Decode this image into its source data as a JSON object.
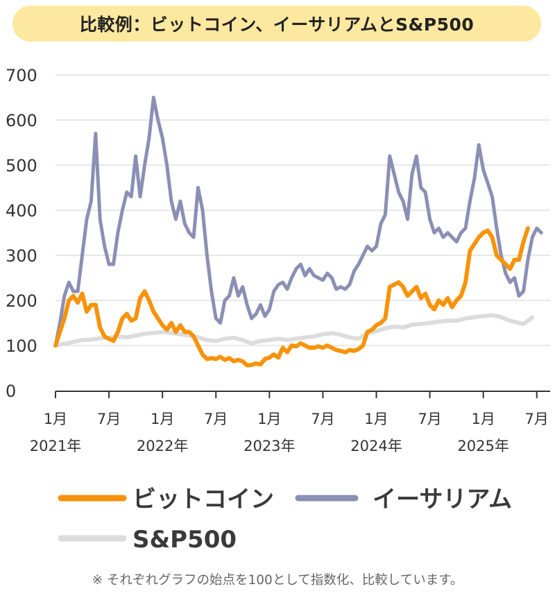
{
  "title": "比較例：ビットコイン、イーサリアムとS&P500",
  "footnote": "※ それぞれグラフの始点を100として指数化、比較しています。",
  "colors": {
    "title_bg": "#fde8a0",
    "bitcoin": "#f7930a",
    "ethereum": "#8b8fb5",
    "sp500": "#dcdcdc",
    "grid": "#d0d0d0",
    "axis": "#333333"
  },
  "chart_data": {
    "type": "line",
    "title": "比較例：ビットコイン、イーサリアムとS&P500",
    "xlabel": "",
    "ylabel": "",
    "ylim": [
      0,
      700
    ],
    "yticks": [
      0,
      100,
      200,
      300,
      400,
      500,
      600,
      700
    ],
    "x_ticks": [
      {
        "t": 0,
        "month": "1月",
        "year": "2021年"
      },
      {
        "t": 6,
        "month": "7月",
        "year": ""
      },
      {
        "t": 12,
        "month": "1月",
        "year": "2022年"
      },
      {
        "t": 18,
        "month": "7月",
        "year": ""
      },
      {
        "t": 24,
        "month": "1月",
        "year": "2023年"
      },
      {
        "t": 30,
        "month": "7月",
        "year": ""
      },
      {
        "t": 36,
        "month": "1月",
        "year": "2024年"
      },
      {
        "t": 42,
        "month": "7月",
        "year": ""
      },
      {
        "t": 48,
        "month": "1月",
        "year": "2025年"
      },
      {
        "t": 54,
        "month": "7月",
        "year": ""
      }
    ],
    "x_range_months": [
      0,
      55.5
    ],
    "grid": true,
    "legend_position": "bottom",
    "legend": [
      "ビットコイン",
      "イーサリアム",
      "S&P500"
    ],
    "series": [
      {
        "name": "ビットコイン",
        "color": "#f7930a",
        "points": [
          [
            0,
            100
          ],
          [
            0.5,
            130
          ],
          [
            1,
            160
          ],
          [
            1.5,
            200
          ],
          [
            2,
            210
          ],
          [
            2.5,
            195
          ],
          [
            3,
            215
          ],
          [
            3.5,
            175
          ],
          [
            4,
            190
          ],
          [
            4.5,
            190
          ],
          [
            5,
            140
          ],
          [
            5.5,
            120
          ],
          [
            6,
            115
          ],
          [
            6.5,
            110
          ],
          [
            7,
            130
          ],
          [
            7.5,
            160
          ],
          [
            8,
            170
          ],
          [
            8.5,
            155
          ],
          [
            9,
            160
          ],
          [
            9.5,
            205
          ],
          [
            10,
            220
          ],
          [
            10.5,
            200
          ],
          [
            11,
            175
          ],
          [
            11.5,
            160
          ],
          [
            12,
            145
          ],
          [
            12.5,
            135
          ],
          [
            13,
            150
          ],
          [
            13.5,
            130
          ],
          [
            14,
            145
          ],
          [
            14.5,
            130
          ],
          [
            15,
            130
          ],
          [
            15.5,
            120
          ],
          [
            16,
            100
          ],
          [
            16.5,
            80
          ],
          [
            17,
            70
          ],
          [
            17.5,
            72
          ],
          [
            18,
            70
          ],
          [
            18.5,
            75
          ],
          [
            19,
            68
          ],
          [
            19.5,
            72
          ],
          [
            20,
            65
          ],
          [
            20.5,
            68
          ],
          [
            21,
            65
          ],
          [
            21.5,
            56
          ],
          [
            22,
            57
          ],
          [
            22.5,
            60
          ],
          [
            23,
            58
          ],
          [
            23.5,
            70
          ],
          [
            24,
            73
          ],
          [
            24.5,
            80
          ],
          [
            25,
            73
          ],
          [
            25.5,
            95
          ],
          [
            26,
            85
          ],
          [
            26.5,
            100
          ],
          [
            27,
            98
          ],
          [
            27.5,
            105
          ],
          [
            28,
            100
          ],
          [
            28.5,
            95
          ],
          [
            29,
            95
          ],
          [
            29.5,
            98
          ],
          [
            30,
            95
          ],
          [
            30.5,
            100
          ],
          [
            31,
            95
          ],
          [
            31.5,
            90
          ],
          [
            32,
            88
          ],
          [
            32.5,
            85
          ],
          [
            33,
            90
          ],
          [
            33.5,
            88
          ],
          [
            34,
            92
          ],
          [
            34.5,
            100
          ],
          [
            35,
            130
          ],
          [
            35.5,
            135
          ],
          [
            36,
            145
          ],
          [
            36.5,
            150
          ],
          [
            37,
            160
          ],
          [
            37.5,
            230
          ],
          [
            38,
            235
          ],
          [
            38.5,
            240
          ],
          [
            39,
            230
          ],
          [
            39.5,
            210
          ],
          [
            40,
            220
          ],
          [
            40.5,
            230
          ],
          [
            41,
            205
          ],
          [
            41.5,
            215
          ],
          [
            42,
            190
          ],
          [
            42.5,
            180
          ],
          [
            43,
            200
          ],
          [
            43.5,
            190
          ],
          [
            44,
            205
          ],
          [
            44.5,
            185
          ],
          [
            45,
            200
          ],
          [
            45.5,
            210
          ],
          [
            46,
            240
          ],
          [
            46.5,
            310
          ],
          [
            47,
            325
          ],
          [
            47.5,
            340
          ],
          [
            48,
            350
          ],
          [
            48.5,
            355
          ],
          [
            49,
            340
          ],
          [
            49.5,
            300
          ],
          [
            50,
            290
          ],
          [
            50.5,
            280
          ],
          [
            51,
            270
          ],
          [
            51.5,
            290
          ],
          [
            52,
            290
          ],
          [
            52.5,
            330
          ],
          [
            53,
            360
          ]
        ]
      },
      {
        "name": "イーサリアム",
        "color": "#8b8fb5",
        "points": [
          [
            0,
            100
          ],
          [
            0.5,
            150
          ],
          [
            1,
            210
          ],
          [
            1.5,
            240
          ],
          [
            2,
            220
          ],
          [
            2.5,
            220
          ],
          [
            3,
            300
          ],
          [
            3.5,
            380
          ],
          [
            4,
            420
          ],
          [
            4.5,
            570
          ],
          [
            5,
            380
          ],
          [
            5.5,
            320
          ],
          [
            6,
            280
          ],
          [
            6.5,
            280
          ],
          [
            7,
            350
          ],
          [
            7.5,
            400
          ],
          [
            8,
            440
          ],
          [
            8.5,
            430
          ],
          [
            9,
            520
          ],
          [
            9.5,
            430
          ],
          [
            10,
            500
          ],
          [
            10.5,
            560
          ],
          [
            11,
            650
          ],
          [
            11.5,
            600
          ],
          [
            12,
            560
          ],
          [
            12.5,
            500
          ],
          [
            13,
            420
          ],
          [
            13.5,
            380
          ],
          [
            14,
            420
          ],
          [
            14.5,
            370
          ],
          [
            15,
            350
          ],
          [
            15.5,
            340
          ],
          [
            16,
            450
          ],
          [
            16.5,
            400
          ],
          [
            17,
            300
          ],
          [
            17.5,
            220
          ],
          [
            18,
            160
          ],
          [
            18.5,
            150
          ],
          [
            19,
            200
          ],
          [
            19.5,
            210
          ],
          [
            20,
            250
          ],
          [
            20.5,
            210
          ],
          [
            21,
            230
          ],
          [
            21.5,
            190
          ],
          [
            22,
            160
          ],
          [
            22.5,
            170
          ],
          [
            23,
            190
          ],
          [
            23.5,
            165
          ],
          [
            24,
            180
          ],
          [
            24.5,
            220
          ],
          [
            25,
            235
          ],
          [
            25.5,
            240
          ],
          [
            26,
            225
          ],
          [
            26.5,
            250
          ],
          [
            27,
            270
          ],
          [
            27.5,
            280
          ],
          [
            28,
            255
          ],
          [
            28.5,
            270
          ],
          [
            29,
            255
          ],
          [
            29.5,
            250
          ],
          [
            30,
            245
          ],
          [
            30.5,
            260
          ],
          [
            31,
            250
          ],
          [
            31.5,
            225
          ],
          [
            32,
            230
          ],
          [
            32.5,
            225
          ],
          [
            33,
            235
          ],
          [
            33.5,
            265
          ],
          [
            34,
            280
          ],
          [
            34.5,
            300
          ],
          [
            35,
            320
          ],
          [
            35.5,
            310
          ],
          [
            36,
            320
          ],
          [
            36.5,
            370
          ],
          [
            37,
            390
          ],
          [
            37.5,
            520
          ],
          [
            38,
            480
          ],
          [
            38.5,
            440
          ],
          [
            39,
            420
          ],
          [
            39.5,
            380
          ],
          [
            40,
            480
          ],
          [
            40.5,
            520
          ],
          [
            41,
            450
          ],
          [
            41.5,
            440
          ],
          [
            42,
            380
          ],
          [
            42.5,
            350
          ],
          [
            43,
            360
          ],
          [
            43.5,
            340
          ],
          [
            44,
            350
          ],
          [
            44.5,
            340
          ],
          [
            45,
            330
          ],
          [
            45.5,
            350
          ],
          [
            46,
            360
          ],
          [
            46.5,
            420
          ],
          [
            47,
            470
          ],
          [
            47.5,
            545
          ],
          [
            48,
            490
          ],
          [
            48.5,
            460
          ],
          [
            49,
            430
          ],
          [
            49.5,
            360
          ],
          [
            50,
            300
          ],
          [
            50.5,
            260
          ],
          [
            51,
            240
          ],
          [
            51.5,
            250
          ],
          [
            52,
            210
          ],
          [
            52.5,
            220
          ],
          [
            53,
            290
          ],
          [
            53.5,
            340
          ],
          [
            54,
            360
          ],
          [
            54.5,
            350
          ]
        ]
      },
      {
        "name": "S&P500",
        "color": "#dcdcdc",
        "points": [
          [
            0,
            100
          ],
          [
            1,
            104
          ],
          [
            2,
            108
          ],
          [
            3,
            112
          ],
          [
            4,
            113
          ],
          [
            5,
            116
          ],
          [
            6,
            117
          ],
          [
            7,
            120
          ],
          [
            8,
            118
          ],
          [
            9,
            122
          ],
          [
            10,
            126
          ],
          [
            11,
            128
          ],
          [
            12,
            130
          ],
          [
            13,
            128
          ],
          [
            14,
            125
          ],
          [
            15,
            122
          ],
          [
            16,
            118
          ],
          [
            17,
            112
          ],
          [
            18,
            110
          ],
          [
            19,
            115
          ],
          [
            20,
            117
          ],
          [
            21,
            112
          ],
          [
            22,
            105
          ],
          [
            23,
            110
          ],
          [
            24,
            112
          ],
          [
            25,
            115
          ],
          [
            26,
            112
          ],
          [
            27,
            115
          ],
          [
            28,
            118
          ],
          [
            29,
            120
          ],
          [
            30,
            125
          ],
          [
            31,
            127
          ],
          [
            32,
            124
          ],
          [
            33,
            118
          ],
          [
            34,
            115
          ],
          [
            35,
            127
          ],
          [
            36,
            132
          ],
          [
            37,
            138
          ],
          [
            38,
            142
          ],
          [
            39,
            140
          ],
          [
            40,
            146
          ],
          [
            41,
            148
          ],
          [
            42,
            150
          ],
          [
            43,
            153
          ],
          [
            44,
            155
          ],
          [
            45,
            155
          ],
          [
            46,
            160
          ],
          [
            47,
            163
          ],
          [
            48,
            165
          ],
          [
            49,
            167
          ],
          [
            50,
            163
          ],
          [
            51,
            155
          ],
          [
            52,
            150
          ],
          [
            52.5,
            148
          ],
          [
            53,
            155
          ],
          [
            53.5,
            162
          ]
        ]
      }
    ]
  }
}
